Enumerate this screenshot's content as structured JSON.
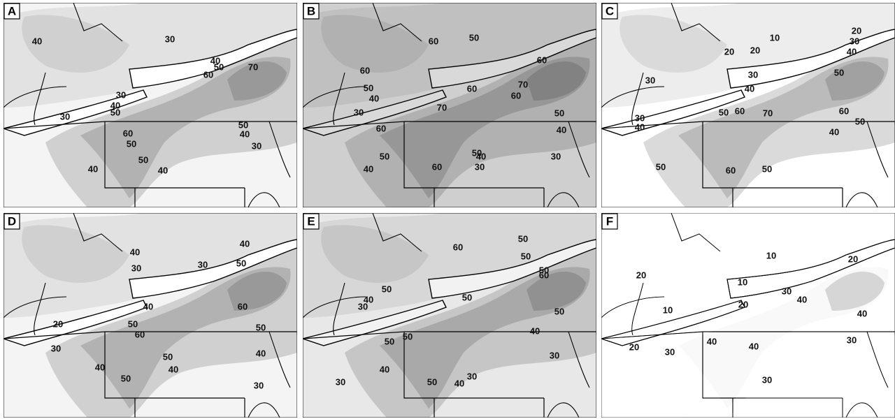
{
  "panels": [
    {
      "letter": "A",
      "contour_labels": [
        40,
        30,
        40,
        50,
        60,
        70,
        30,
        40,
        50,
        30,
        60,
        50,
        50,
        40,
        30,
        50,
        40,
        40
      ]
    },
    {
      "letter": "B",
      "contour_labels": [
        60,
        50,
        60,
        50,
        40,
        30,
        60,
        60,
        70,
        60,
        70,
        60,
        50,
        40,
        50,
        40,
        50,
        40,
        30,
        30,
        60
      ]
    },
    {
      "letter": "C",
      "contour_labels": [
        10,
        20,
        20,
        20,
        30,
        40,
        50,
        30,
        30,
        40,
        50,
        60,
        70,
        60,
        50,
        30,
        40,
        40,
        50,
        60,
        50
      ]
    },
    {
      "letter": "D",
      "contour_labels": [
        40,
        40,
        30,
        30,
        50,
        40,
        60,
        20,
        50,
        50,
        60,
        30,
        50,
        40,
        40,
        40,
        50,
        30
      ]
    },
    {
      "letter": "E",
      "contour_labels": [
        60,
        50,
        50,
        50,
        60,
        50,
        40,
        30,
        50,
        50,
        40,
        50,
        50,
        30,
        40,
        50,
        40,
        30,
        30
      ]
    },
    {
      "letter": "F",
      "contour_labels": [
        10,
        20,
        10,
        30,
        40,
        20,
        20,
        10,
        40,
        40,
        40,
        30,
        20,
        30,
        30
      ]
    }
  ]
}
